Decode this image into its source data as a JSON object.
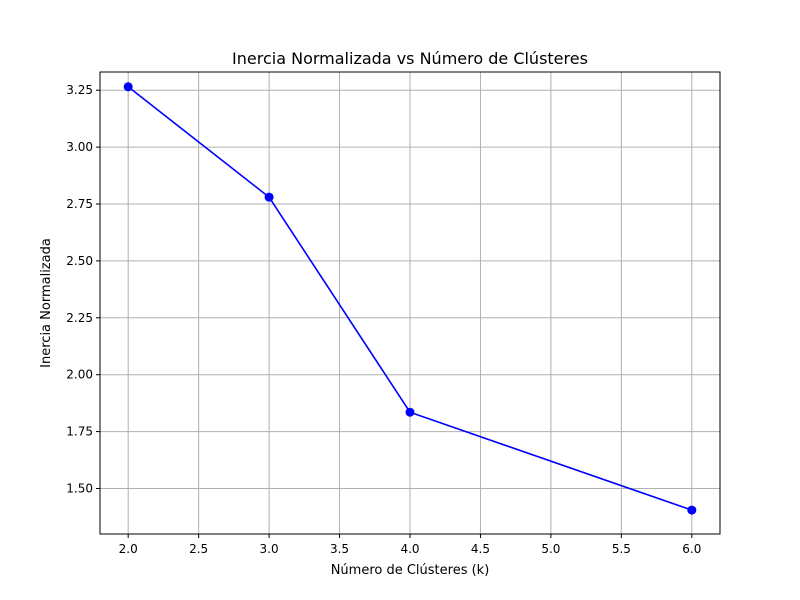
{
  "chart_data": {
    "type": "line",
    "title": "Inercia Normalizada vs Número de Clústeres",
    "xlabel": "Número de Clústeres (k)",
    "ylabel": "Inercia Normalizada",
    "xlim": [
      1.8,
      6.2
    ],
    "ylim": [
      1.3,
      3.33
    ],
    "xticks": [
      "2.0",
      "2.5",
      "3.0",
      "3.5",
      "4.0",
      "4.5",
      "5.0",
      "5.5",
      "6.0"
    ],
    "yticks": [
      "1.50",
      "1.75",
      "2.00",
      "2.25",
      "2.50",
      "2.75",
      "3.00",
      "3.25"
    ],
    "grid": true,
    "series": [
      {
        "color": "#0000ff",
        "marker": "circle",
        "x": [
          2,
          3,
          4,
          6
        ],
        "y": [
          3.265,
          2.78,
          1.835,
          1.405
        ]
      }
    ]
  }
}
